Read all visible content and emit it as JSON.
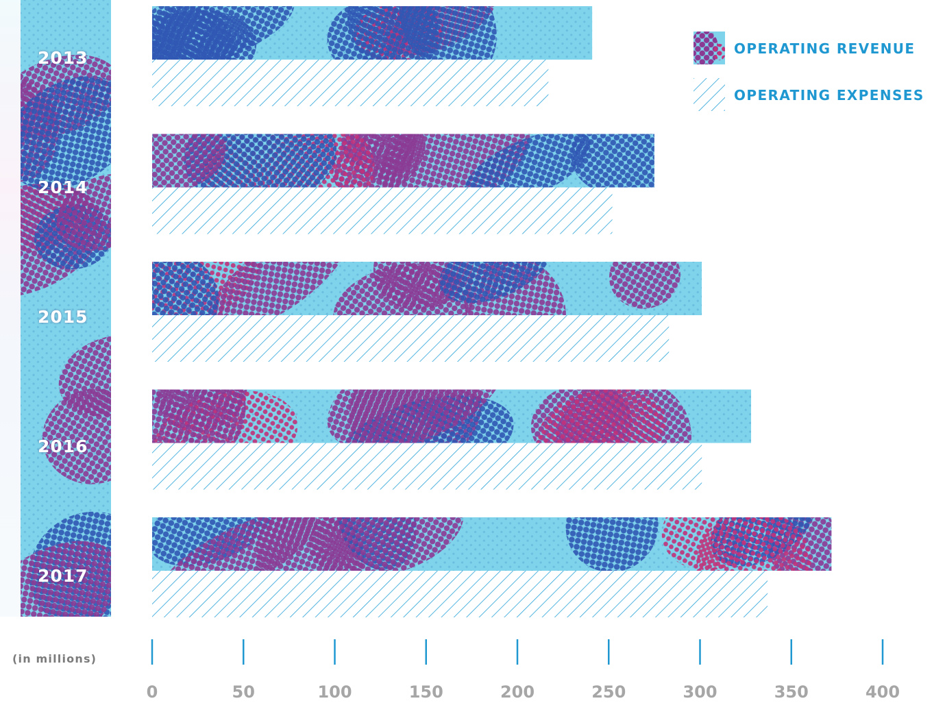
{
  "chart_data": {
    "type": "bar",
    "orientation": "horizontal",
    "categories": [
      "2013",
      "2014",
      "2015",
      "2016",
      "2017"
    ],
    "series": [
      {
        "name": "OPERATING REVENUE",
        "values": [
          241,
          275,
          301,
          328,
          372
        ],
        "style": "halftone"
      },
      {
        "name": "OPERATING EXPENSES",
        "values": [
          217,
          252,
          283,
          301,
          337
        ],
        "style": "hatched"
      }
    ],
    "xticks": [
      "0",
      "50",
      "100",
      "150",
      "200",
      "250",
      "300",
      "350",
      "400"
    ],
    "xlim": [
      0,
      400
    ],
    "unit_label": "(in millions)",
    "legend_position": "top-right",
    "grid": false
  },
  "colors": {
    "accent": "#1f98d2",
    "halftone_light": "#7fd3ea",
    "halftone_purple": "#8b3a94",
    "halftone_blue": "#2f57b3",
    "halftone_magenta": "#c2317a",
    "hatch": "#2aa3d8",
    "axis_text": "#a6a6a6"
  }
}
